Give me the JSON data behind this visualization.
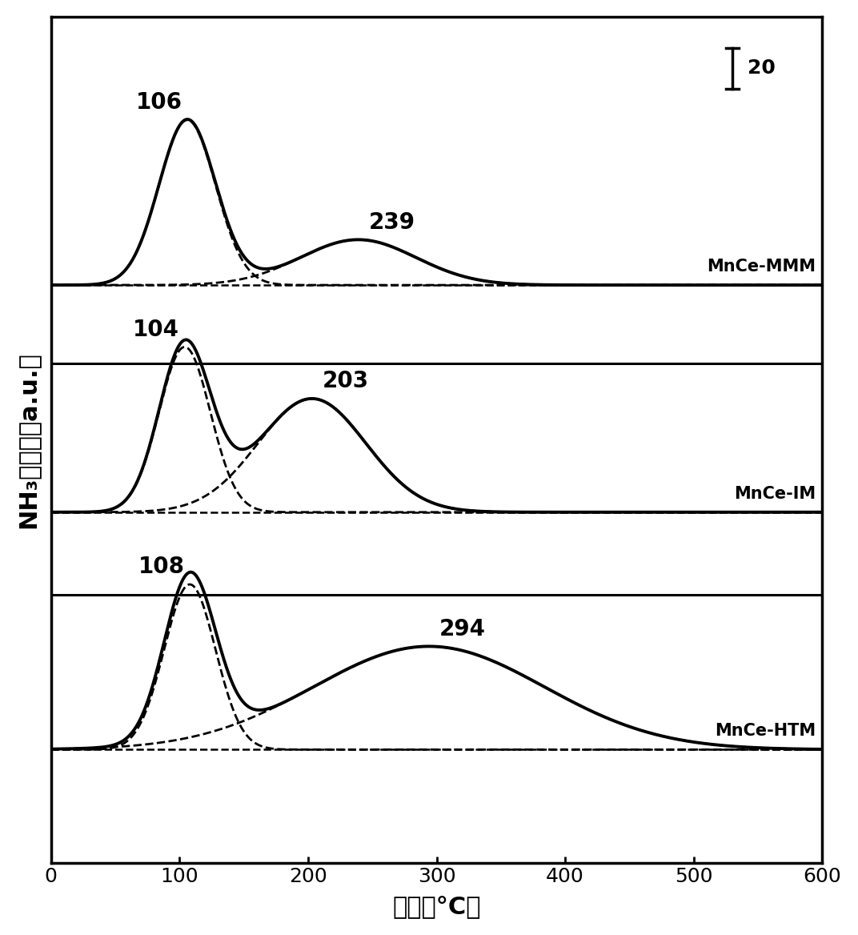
{
  "xlabel": "温度（°C）",
  "ylabel": "NH₃脱附量（a.u.）",
  "xlim": [
    0,
    600
  ],
  "x_ticks": [
    0,
    100,
    200,
    300,
    400,
    500,
    600
  ],
  "labels": [
    "MnCe-MMM",
    "MnCe-IM",
    "MnCe-HTM"
  ],
  "peaks": [
    {
      "p1c": 106,
      "p1w": 22,
      "p1h": 80,
      "p2c": 239,
      "p2w": 45,
      "p2h": 22,
      "lbl1": "106",
      "lbl2": "239",
      "baseline": 200
    },
    {
      "p1c": 104,
      "p1w": 20,
      "p1h": 80,
      "p2c": 203,
      "p2w": 42,
      "p2h": 55,
      "lbl1": "104",
      "lbl2": "203",
      "baseline": 90
    },
    {
      "p1c": 108,
      "p1w": 20,
      "p1h": 80,
      "p2c": 294,
      "p2w": 90,
      "p2h": 50,
      "lbl1": "108",
      "lbl2": "294",
      "baseline": -25
    }
  ],
  "sep_lines": [
    162,
    50
  ],
  "scalebar_value": "20",
  "scalebar_units": 20,
  "line_color": "#000000",
  "ylim": [
    -80,
    330
  ]
}
